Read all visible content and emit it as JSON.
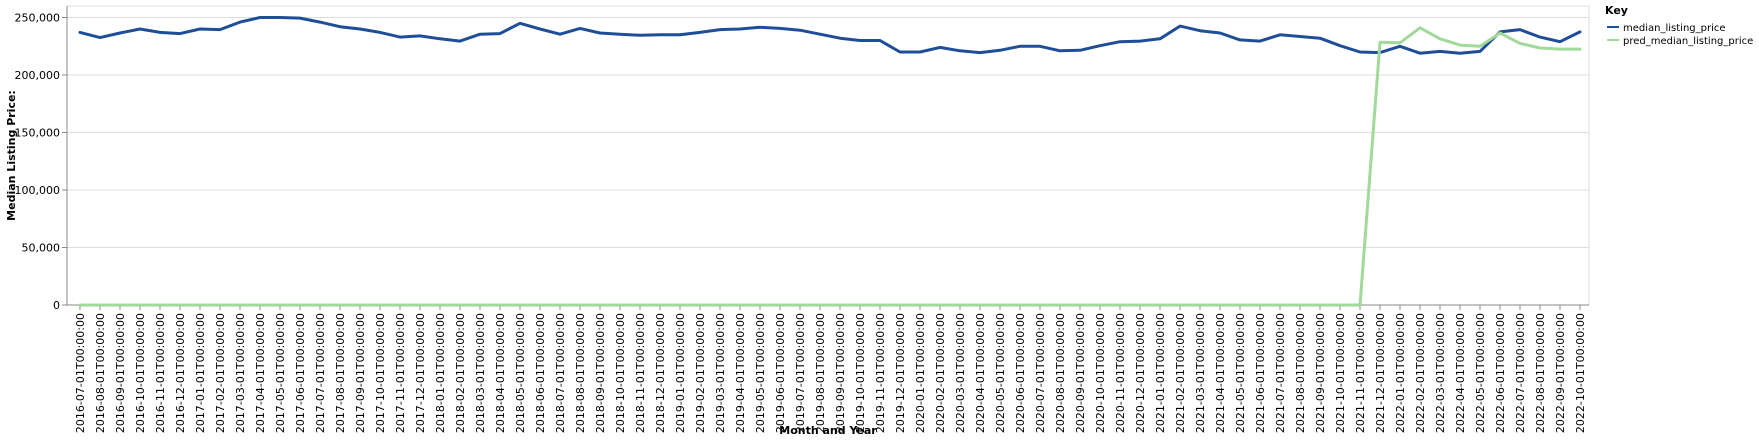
{
  "chart_data": {
    "type": "line",
    "xlabel": "Month and Year",
    "ylabel": "Median Listing Price:",
    "ylim": [
      0,
      260000
    ],
    "yticks": [
      0,
      50000,
      100000,
      150000,
      200000,
      250000
    ],
    "ytick_labels": [
      "0",
      "50,000",
      "100,000",
      "150,000",
      "200,000",
      "250,000"
    ],
    "grid": true,
    "legend": {
      "title": "Key",
      "placement": "right"
    },
    "x": [
      "2016-07-01T00:00:00",
      "2016-08-01T00:00:00",
      "2016-09-01T00:00:00",
      "2016-10-01T00:00:00",
      "2016-11-01T00:00:00",
      "2016-12-01T00:00:00",
      "2017-01-01T00:00:00",
      "2017-02-01T00:00:00",
      "2017-03-01T00:00:00",
      "2017-04-01T00:00:00",
      "2017-05-01T00:00:00",
      "2017-06-01T00:00:00",
      "2017-07-01T00:00:00",
      "2017-08-01T00:00:00",
      "2017-09-01T00:00:00",
      "2017-10-01T00:00:00",
      "2017-11-01T00:00:00",
      "2017-12-01T00:00:00",
      "2018-01-01T00:00:00",
      "2018-02-01T00:00:00",
      "2018-03-01T00:00:00",
      "2018-04-01T00:00:00",
      "2018-05-01T00:00:00",
      "2018-06-01T00:00:00",
      "2018-07-01T00:00:00",
      "2018-08-01T00:00:00",
      "2018-09-01T00:00:00",
      "2018-10-01T00:00:00",
      "2018-11-01T00:00:00",
      "2018-12-01T00:00:00",
      "2019-01-01T00:00:00",
      "2019-02-01T00:00:00",
      "2019-03-01T00:00:00",
      "2019-04-01T00:00:00",
      "2019-05-01T00:00:00",
      "2019-06-01T00:00:00",
      "2019-07-01T00:00:00",
      "2019-08-01T00:00:00",
      "2019-09-01T00:00:00",
      "2019-10-01T00:00:00",
      "2019-11-01T00:00:00",
      "2019-12-01T00:00:00",
      "2020-01-01T00:00:00",
      "2020-02-01T00:00:00",
      "2020-03-01T00:00:00",
      "2020-04-01T00:00:00",
      "2020-05-01T00:00:00",
      "2020-06-01T00:00:00",
      "2020-07-01T00:00:00",
      "2020-08-01T00:00:00",
      "2020-09-01T00:00:00",
      "2020-10-01T00:00:00",
      "2020-11-01T00:00:00",
      "2020-12-01T00:00:00",
      "2021-01-01T00:00:00",
      "2021-02-01T00:00:00",
      "2021-03-01T00:00:00",
      "2021-04-01T00:00:00",
      "2021-05-01T00:00:00",
      "2021-06-01T00:00:00",
      "2021-07-01T00:00:00",
      "2021-08-01T00:00:00",
      "2021-09-01T00:00:00",
      "2021-10-01T00:00:00",
      "2021-11-01T00:00:00",
      "2021-12-01T00:00:00",
      "2022-01-01T00:00:00",
      "2022-02-01T00:00:00",
      "2022-03-01T00:00:00",
      "2022-04-01T00:00:00",
      "2022-05-01T00:00:00",
      "2022-06-01T00:00:00",
      "2022-07-01T00:00:00",
      "2022-08-01T00:00:00",
      "2022-09-01T00:00:00",
      "2022-10-01T00:00:00"
    ],
    "series": [
      {
        "name": "median_listing_price",
        "color": "#1f4e99",
        "values": [
          237000,
          232500,
          236500,
          240000,
          237000,
          236000,
          240000,
          239500,
          246000,
          250000,
          250000,
          249500,
          246000,
          242000,
          240000,
          237000,
          233000,
          234000,
          231500,
          229500,
          235500,
          236000,
          245000,
          240000,
          235500,
          240500,
          236500,
          235500,
          234500,
          235000,
          235000,
          237000,
          239500,
          240000,
          241500,
          240500,
          239000,
          235500,
          232000,
          230000,
          230000,
          220000,
          220000,
          224000,
          221000,
          219500,
          221500,
          225000,
          225000,
          221000,
          221500,
          225500,
          229000,
          229500,
          231500,
          242500,
          238500,
          236500,
          230500,
          229500,
          235000,
          233500,
          232000,
          225500,
          220000,
          219500,
          225000,
          219000,
          220500,
          219000,
          220500,
          237500,
          239500,
          233000,
          229000,
          237500
        ]
      },
      {
        "name": "pred_median_listing_price",
        "color": "#a1d99b",
        "values": [
          0,
          0,
          0,
          0,
          0,
          0,
          0,
          0,
          0,
          0,
          0,
          0,
          0,
          0,
          0,
          0,
          0,
          0,
          0,
          0,
          0,
          0,
          0,
          0,
          0,
          0,
          0,
          0,
          0,
          0,
          0,
          0,
          0,
          0,
          0,
          0,
          0,
          0,
          0,
          0,
          0,
          0,
          0,
          0,
          0,
          0,
          0,
          0,
          0,
          0,
          0,
          0,
          0,
          0,
          0,
          0,
          0,
          0,
          0,
          0,
          0,
          0,
          0,
          0,
          0,
          228500,
          228000,
          241000,
          231500,
          226000,
          225000,
          236500,
          227500,
          223500,
          222500,
          222500
        ]
      }
    ]
  }
}
